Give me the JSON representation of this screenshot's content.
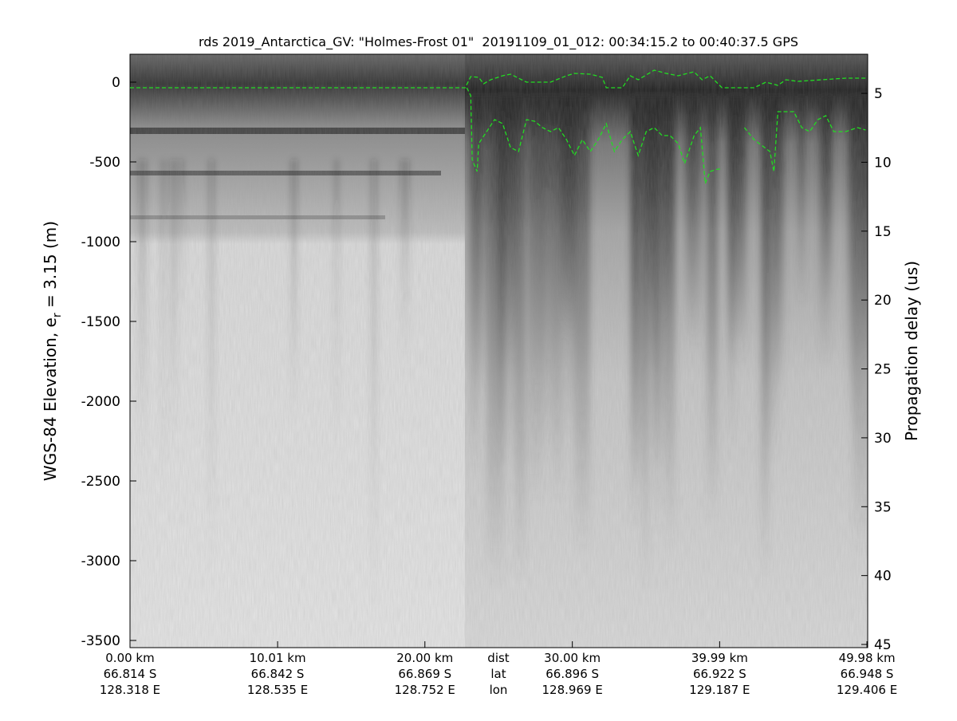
{
  "chart_data": {
    "type": "radargram",
    "title": "rds 2019_Antarctica_GV: \"Holmes-Frost 01\"  20191109_01_012: 00:34:15.2 to 00:40:37.5 GPS",
    "ylabel": {
      "text": "WGS-84 Elevation, e",
      "subscript": "r",
      "suffix": " = 3.15 (m)"
    },
    "y2label": "Propagation delay (us)",
    "xlim": [
      0,
      50.03
    ],
    "ylim": [
      -3545,
      175
    ],
    "y2lim": [
      45.23,
      2.16
    ],
    "yticks": [
      0,
      -500,
      -1000,
      -1500,
      -2000,
      -2500,
      -3000,
      -3500
    ],
    "y2ticks": [
      5,
      10,
      15,
      20,
      25,
      30,
      35,
      40,
      45
    ],
    "xticks": [
      {
        "value": 0,
        "label": "0.00 km"
      },
      {
        "value": 10.01,
        "label": "10.01 km"
      },
      {
        "value": 20.0,
        "label": "20.00 km"
      },
      {
        "value": 30.0,
        "label": "30.00 km"
      },
      {
        "value": 39.99,
        "label": "39.99 km"
      },
      {
        "value": 49.98,
        "label": "49.98 km"
      }
    ],
    "xtick_lat": [
      "66.814 S",
      "66.842 S",
      "66.869 S",
      "66.896 S",
      "66.922 S",
      "66.948 S"
    ],
    "xtick_lon": [
      "128.318 E",
      "128.535 E",
      "128.752 E",
      "128.969 E",
      "129.187 E",
      "129.406 E"
    ],
    "xtick_row_names": [
      "dist",
      "lat",
      "lon"
    ],
    "series": [
      {
        "name": "surface",
        "color": "#22dd22",
        "x": [
          0,
          22.73,
          23.11,
          23.65,
          23.98,
          24.46,
          25.27,
          25.81,
          26.89,
          28.52,
          29.6,
          30.14,
          31.22,
          32.03,
          32.3,
          33.39,
          33.93,
          34.47,
          35.55,
          36.36,
          37.17,
          38.25,
          38.8,
          39.34,
          40.15,
          42.32,
          43.13,
          43.94,
          44.48,
          45.29,
          46.92,
          48.54,
          49.89
        ],
        "values": [
          -35,
          -35,
          35,
          30,
          -10,
          15,
          40,
          50,
          0,
          0,
          40,
          55,
          50,
          30,
          -35,
          -35,
          40,
          15,
          75,
          55,
          40,
          65,
          15,
          40,
          -35,
          -35,
          0,
          -20,
          15,
          5,
          15,
          25,
          25
        ]
      },
      {
        "name": "bed",
        "color": "#22dd22",
        "x": [
          22.84,
          23.11,
          23.21,
          23.54,
          23.65,
          24.19,
          24.73,
          25.27,
          25.81,
          26.35,
          26.89,
          27.44,
          27.98,
          28.52,
          29.06,
          29.6,
          30.14,
          30.68,
          31.22,
          31.76,
          32.3,
          32.85,
          33.39,
          33.93,
          34.47,
          35.01,
          35.55,
          36.09,
          36.63,
          37.18,
          37.61,
          38.26,
          38.69,
          39.01,
          39.34,
          39.88,
          40.15,
          41.0,
          41.67,
          42.32,
          43.4,
          43.67,
          43.94,
          44.48,
          45.02,
          45.56,
          46.1,
          46.65,
          47.19,
          47.73,
          48.54,
          49.35,
          49.89
        ],
        "values": [
          -35,
          -85,
          -485,
          -560,
          -385,
          -310,
          -235,
          -260,
          -410,
          -435,
          -235,
          -245,
          -285,
          -310,
          -285,
          -360,
          -460,
          -360,
          -435,
          -360,
          -260,
          -435,
          -360,
          -310,
          -460,
          -310,
          -285,
          -335,
          -335,
          -385,
          -510,
          -335,
          -285,
          -635,
          -560,
          -545,
          -545,
          null,
          -285,
          -360,
          -435,
          -560,
          -185,
          -185,
          -185,
          -285,
          -310,
          -235,
          -210,
          -310,
          -310,
          -285,
          -300
        ]
      }
    ]
  }
}
